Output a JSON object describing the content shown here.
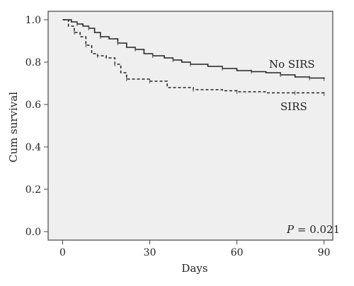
{
  "chart_data": {
    "type": "line",
    "xlabel": "Days",
    "ylabel": "Cum survival",
    "xlim": [
      -5,
      93
    ],
    "ylim": [
      -0.04,
      1.04
    ],
    "x_ticks": [
      0,
      30,
      60,
      90
    ],
    "y_ticks": [
      0.0,
      0.2,
      0.4,
      0.6,
      0.8,
      1.0
    ],
    "x_tick_labels": [
      "0",
      "30",
      "60",
      "90"
    ],
    "y_tick_labels": [
      "0.0",
      "0.2",
      "0.4",
      "0.6",
      "0.8",
      "1.0"
    ],
    "grid": false,
    "background": "#efefef",
    "annotation": {
      "prefix": "P",
      "text": " = 0.021"
    },
    "series": [
      {
        "name": "No SIRS",
        "style": "solid",
        "color": "#222222",
        "x": [
          0,
          3,
          5,
          7,
          9,
          11,
          13,
          16,
          19,
          22,
          25,
          28,
          31,
          35,
          38,
          41,
          44,
          50,
          55,
          60,
          65,
          70,
          75,
          80,
          85,
          90
        ],
        "y": [
          1.0,
          0.99,
          0.98,
          0.97,
          0.96,
          0.94,
          0.92,
          0.91,
          0.89,
          0.87,
          0.86,
          0.84,
          0.83,
          0.82,
          0.81,
          0.8,
          0.79,
          0.78,
          0.77,
          0.76,
          0.755,
          0.75,
          0.74,
          0.73,
          0.725,
          0.72
        ]
      },
      {
        "name": "SIRS",
        "style": "dashed",
        "color": "#222222",
        "x": [
          0,
          2,
          4,
          6,
          8,
          10,
          12,
          15,
          18,
          20,
          22,
          25,
          30,
          36,
          45,
          55,
          60,
          70,
          80,
          90
        ],
        "y": [
          1.0,
          0.97,
          0.94,
          0.92,
          0.88,
          0.84,
          0.83,
          0.82,
          0.79,
          0.75,
          0.72,
          0.72,
          0.71,
          0.68,
          0.67,
          0.665,
          0.66,
          0.655,
          0.655,
          0.65
        ]
      }
    ]
  }
}
